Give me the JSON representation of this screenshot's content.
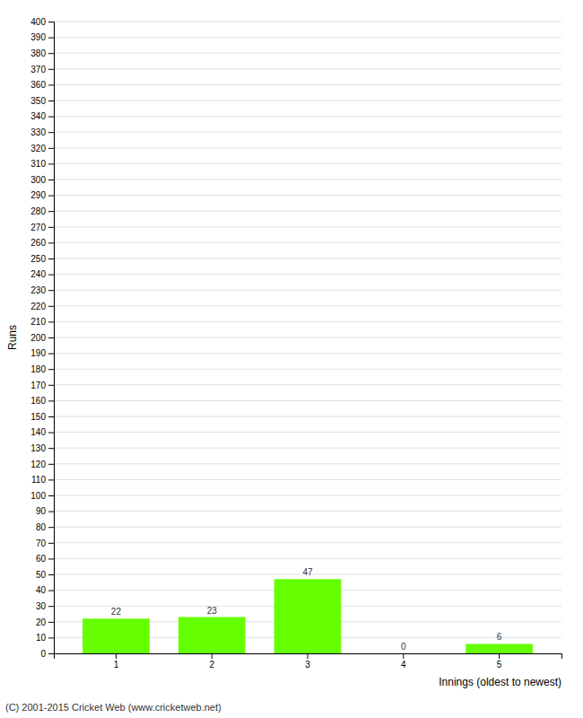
{
  "chart_data": {
    "type": "bar",
    "xlabel": "Innings (oldest to newest)",
    "ylabel": "Runs",
    "footer": "(C) 2001-2015 Cricket Web (www.cricketweb.net)",
    "categories": [
      "1",
      "2",
      "3",
      "4",
      "5"
    ],
    "values": [
      22,
      23,
      47,
      0,
      6
    ],
    "color": "#66ff00",
    "ylim": [
      0,
      400
    ],
    "yticks": [
      0,
      10,
      20,
      30,
      40,
      50,
      60,
      70,
      80,
      90,
      100,
      110,
      120,
      130,
      140,
      150,
      160,
      170,
      180,
      190,
      200,
      210,
      220,
      230,
      240,
      250,
      260,
      270,
      280,
      290,
      300,
      310,
      320,
      330,
      340,
      350,
      360,
      370,
      380,
      390,
      400
    ],
    "grid": true,
    "data_labels": true
  }
}
